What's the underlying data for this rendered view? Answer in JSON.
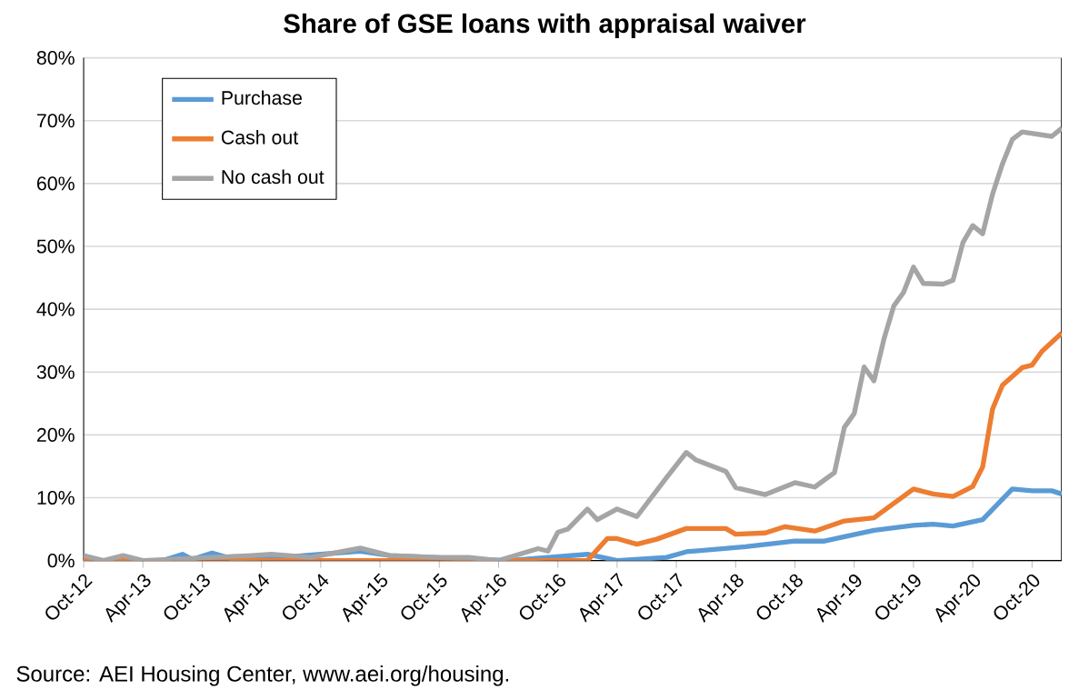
{
  "chart_data": {
    "type": "line",
    "title": "Share of GSE loans with appraisal waiver",
    "annotations": [
      "Source: AEI Housing Center, www.aei.org/housing."
    ],
    "xlim": [
      "2012-10",
      "2021-01"
    ],
    "xticks": [
      {
        "value": "2012-10",
        "label": "Oct-12"
      },
      {
        "value": "2013-04",
        "label": "Apr-13"
      },
      {
        "value": "2013-10",
        "label": "Oct-13"
      },
      {
        "value": "2014-04",
        "label": "Apr-14"
      },
      {
        "value": "2014-10",
        "label": "Oct-14"
      },
      {
        "value": "2015-04",
        "label": "Apr-15"
      },
      {
        "value": "2015-10",
        "label": "Oct-15"
      },
      {
        "value": "2016-04",
        "label": "Apr-16"
      },
      {
        "value": "2016-10",
        "label": "Oct-16"
      },
      {
        "value": "2017-04",
        "label": "Apr-17"
      },
      {
        "value": "2017-10",
        "label": "Oct-17"
      },
      {
        "value": "2018-04",
        "label": "Apr-18"
      },
      {
        "value": "2018-10",
        "label": "Oct-18"
      },
      {
        "value": "2019-04",
        "label": "Apr-19"
      },
      {
        "value": "2019-10",
        "label": "Oct-19"
      },
      {
        "value": "2020-04",
        "label": "Apr-20"
      },
      {
        "value": "2020-10",
        "label": "Oct-20"
      }
    ],
    "ylim": [
      0,
      80
    ],
    "yticks": [
      {
        "value": 0,
        "label": "0%"
      },
      {
        "value": 10,
        "label": "10%"
      },
      {
        "value": 20,
        "label": "20%"
      },
      {
        "value": 30,
        "label": "30%"
      },
      {
        "value": 40,
        "label": "40%"
      },
      {
        "value": 50,
        "label": "50%"
      },
      {
        "value": 60,
        "label": "60%"
      },
      {
        "value": 70,
        "label": "70%"
      },
      {
        "value": 80,
        "label": "80%"
      }
    ],
    "grid": "y",
    "legend": "top left",
    "marker": "none",
    "line_style": "solid",
    "series": [
      {
        "name": "Purchase",
        "color": "#5b9bd5",
        "x": [
          "2012-10",
          "2013-06",
          "2013-08",
          "2013-09",
          "2013-11",
          "2014-01",
          "2014-06",
          "2015-02",
          "2015-05",
          "2016-05",
          "2017-01",
          "2017-04",
          "2017-09",
          "2017-11",
          "2018-05",
          "2018-10",
          "2019-01",
          "2019-03",
          "2019-06",
          "2019-10",
          "2019-12",
          "2020-02",
          "2020-05",
          "2020-08",
          "2020-10",
          "2020-12",
          "2021-01"
        ],
        "values": [
          0,
          0,
          1,
          0.2,
          1.2,
          0.3,
          0.5,
          1.5,
          0.8,
          0,
          1,
          0,
          0.5,
          1.4,
          2.2,
          3.1,
          3.1,
          3.8,
          4.8,
          5.6,
          5.8,
          5.5,
          6.5,
          11.4,
          11.1,
          11.1,
          10.6
        ]
      },
      {
        "name": "Cash out",
        "color": "#ed7d31",
        "x": [
          "2012-10",
          "2012-12",
          "2017-01",
          "2017-03",
          "2017-04",
          "2017-06",
          "2017-08",
          "2017-11",
          "2018-03",
          "2018-04",
          "2018-07",
          "2018-09",
          "2018-12",
          "2019-03",
          "2019-06",
          "2019-10",
          "2019-12",
          "2020-02",
          "2020-04",
          "2020-05",
          "2020-06",
          "2020-07",
          "2020-09",
          "2020-10",
          "2020-11",
          "2021-01"
        ],
        "values": [
          0.3,
          0,
          0,
          3.5,
          3.5,
          2.6,
          3.4,
          5.1,
          5.1,
          4.2,
          4.4,
          5.4,
          4.7,
          6.3,
          6.8,
          11.4,
          10.6,
          10.2,
          11.8,
          14.9,
          24.1,
          27.9,
          30.7,
          31.1,
          33.3,
          36.2
        ]
      },
      {
        "name": "No cash out",
        "color": "#a5a5a5",
        "x": [
          "2012-10",
          "2012-12",
          "2013-02",
          "2013-04",
          "2013-08",
          "2013-11",
          "2014-03",
          "2014-05",
          "2014-09",
          "2015-02",
          "2015-05",
          "2015-10",
          "2016-01",
          "2016-04",
          "2016-05",
          "2016-08",
          "2016-09",
          "2016-10",
          "2016-11",
          "2017-01",
          "2017-02",
          "2017-04",
          "2017-06",
          "2017-09",
          "2017-11",
          "2017-12",
          "2018-03",
          "2018-04",
          "2018-07",
          "2018-10",
          "2018-12",
          "2019-02",
          "2019-03",
          "2019-04",
          "2019-05",
          "2019-06",
          "2019-07",
          "2019-08",
          "2019-09",
          "2019-10",
          "2019-11",
          "2020-01",
          "2020-02",
          "2020-03",
          "2020-04",
          "2020-05",
          "2020-06",
          "2020-07",
          "2020-08",
          "2020-09",
          "2020-12",
          "2021-01"
        ],
        "values": [
          0.8,
          0,
          0.8,
          0,
          0.3,
          0.5,
          0.8,
          1,
          0.5,
          2,
          0.8,
          0.5,
          0.5,
          0,
          0.5,
          1.9,
          1.5,
          4.5,
          5,
          8.2,
          6.5,
          8.2,
          7,
          13.2,
          17.2,
          16,
          14.2,
          11.6,
          10.5,
          12.4,
          11.7,
          14,
          21.2,
          23.4,
          30.8,
          28.6,
          35.2,
          40.5,
          42.7,
          46.7,
          44.1,
          44,
          44.6,
          50.6,
          53.3,
          52,
          58.3,
          63.1,
          67,
          68.2,
          67.5,
          68.8
        ]
      }
    ]
  }
}
